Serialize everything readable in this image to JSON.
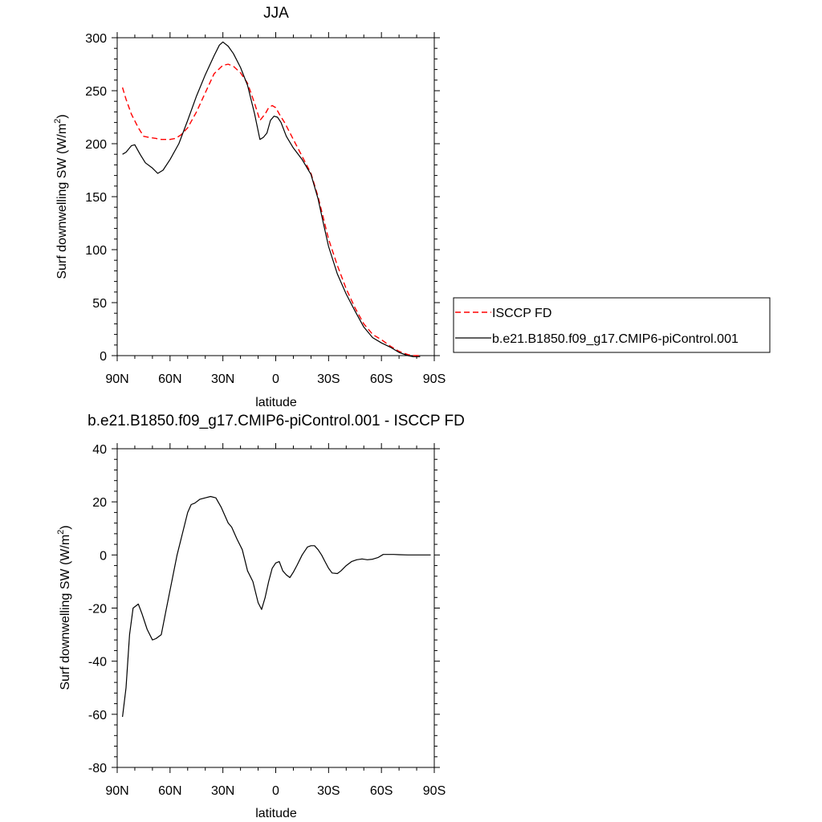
{
  "chart_data": [
    {
      "type": "line",
      "title": "JJA",
      "xlabel": "latitude",
      "ylabel": "Surf downwelling SW (W/m",
      "ylabel_superscript": "2",
      "ylabel_suffix": ")",
      "x_unit": "degrees latitude (90N to 90S)",
      "xlim": [
        90,
        -90
      ],
      "ylim": [
        0,
        300
      ],
      "xticks": [
        90,
        60,
        30,
        0,
        -30,
        -60,
        -90
      ],
      "xtick_labels": [
        "90N",
        "60N",
        "30N",
        "0",
        "30S",
        "60S",
        "90S"
      ],
      "yticks": [
        0,
        50,
        100,
        150,
        200,
        250,
        300
      ],
      "ytick_labels": [
        "0",
        "50",
        "100",
        "150",
        "200",
        "250",
        "300"
      ],
      "legend_position": "right, outside plot",
      "grid": false,
      "series": [
        {
          "name": "ISCCP FD",
          "color": "#ff0000",
          "dash": "dashed",
          "x": [
            87,
            85,
            82,
            78,
            75,
            72,
            68,
            65,
            60,
            57,
            54,
            50,
            45,
            40,
            35,
            30,
            27,
            24,
            20,
            16,
            12,
            9,
            6,
            4,
            2,
            0,
            -2,
            -5,
            -10,
            -15,
            -20,
            -24,
            -27,
            -30,
            -35,
            -40,
            -45,
            -50,
            -55,
            -60,
            -65,
            -70,
            -75,
            -78,
            -80,
            -82
          ],
          "y": [
            253,
            242,
            228,
            215,
            207,
            206,
            205,
            204,
            204,
            205,
            208,
            215,
            230,
            248,
            266,
            274,
            275,
            273,
            267,
            257,
            238,
            222,
            228,
            234,
            236,
            234,
            228,
            220,
            204,
            188,
            172,
            150,
            130,
            110,
            85,
            63,
            45,
            30,
            20,
            15,
            9,
            4,
            1,
            0,
            0,
            0
          ]
        },
        {
          "name": "b.e21.B1850.f09_g17.CMIP6-piControl.001",
          "color": "#000000",
          "dash": "solid",
          "x": [
            87,
            85,
            82,
            80,
            77,
            74,
            70,
            67,
            64,
            60,
            55,
            50,
            45,
            40,
            35,
            32,
            30,
            27,
            24,
            20,
            16,
            12,
            9,
            7,
            5,
            3,
            1,
            -1,
            -3,
            -6,
            -10,
            -15,
            -20,
            -24,
            -27,
            -30,
            -35,
            -40,
            -45,
            -50,
            -55,
            -60,
            -65,
            -70,
            -75,
            -78,
            -80,
            -82
          ],
          "y": [
            190,
            192,
            198,
            199,
            190,
            182,
            177,
            172,
            175,
            185,
            200,
            222,
            245,
            265,
            283,
            293,
            296,
            292,
            285,
            272,
            255,
            228,
            204,
            206,
            210,
            222,
            226,
            225,
            220,
            207,
            196,
            185,
            171,
            148,
            125,
            103,
            77,
            58,
            42,
            27,
            17,
            12,
            8,
            3,
            0,
            -1,
            -1,
            -1
          ]
        }
      ]
    },
    {
      "type": "line",
      "title": "b.e21.B1850.f09_g17.CMIP6-piControl.001 - ISCCP FD",
      "xlabel": "latitude",
      "ylabel": "Surf downwelling SW (W/m",
      "ylabel_superscript": "2",
      "ylabel_suffix": ")",
      "x_unit": "degrees latitude (90N to 90S)",
      "xlim": [
        90,
        -90
      ],
      "ylim": [
        -80,
        40
      ],
      "xticks": [
        90,
        60,
        30,
        0,
        -30,
        -60,
        -90
      ],
      "xtick_labels": [
        "90N",
        "60N",
        "30N",
        "0",
        "30S",
        "60S",
        "90S"
      ],
      "yticks": [
        -80,
        -60,
        -40,
        -20,
        0,
        20,
        40
      ],
      "ytick_labels": [
        "-80",
        "-60",
        "-40",
        "-20",
        "0",
        "20",
        "40"
      ],
      "grid": false,
      "series": [
        {
          "color": "#000000",
          "dash": "solid",
          "x": [
            87,
            85,
            83,
            81,
            78,
            76,
            73,
            70,
            68,
            65,
            62,
            59,
            56,
            53,
            50,
            48,
            46,
            43,
            40,
            37,
            34,
            31,
            29,
            27,
            25,
            22,
            19,
            16,
            13,
            10,
            8,
            6,
            4,
            2,
            0,
            -2,
            -4,
            -6,
            -8,
            -10,
            -12,
            -15,
            -18,
            -20,
            -22,
            -24,
            -26,
            -28,
            -30,
            -32,
            -35,
            -37,
            -40,
            -43,
            -46,
            -49,
            -52,
            -55,
            -58,
            -61,
            -64,
            -67,
            -70,
            -75,
            -80,
            -85,
            -88
          ],
          "y": [
            -61,
            -50,
            -30,
            -20,
            -18.5,
            -22,
            -28,
            -32,
            -31.5,
            -30,
            -20,
            -10,
            0,
            8,
            16,
            19,
            19.5,
            21,
            21.5,
            22,
            21.5,
            18,
            15,
            12,
            10.5,
            6,
            2,
            -6,
            -10,
            -18,
            -20.5,
            -16,
            -10,
            -5,
            -3,
            -2.5,
            -6,
            -7.5,
            -8.5,
            -6.5,
            -4,
            0,
            3,
            3.5,
            3.5,
            2,
            0,
            -2.5,
            -5,
            -6.8,
            -7,
            -6,
            -4,
            -2.5,
            -1.8,
            -1.5,
            -1.8,
            -1.6,
            -1,
            0.2,
            0.2,
            0.2,
            0.1,
            0,
            0,
            0,
            0
          ]
        }
      ]
    }
  ]
}
